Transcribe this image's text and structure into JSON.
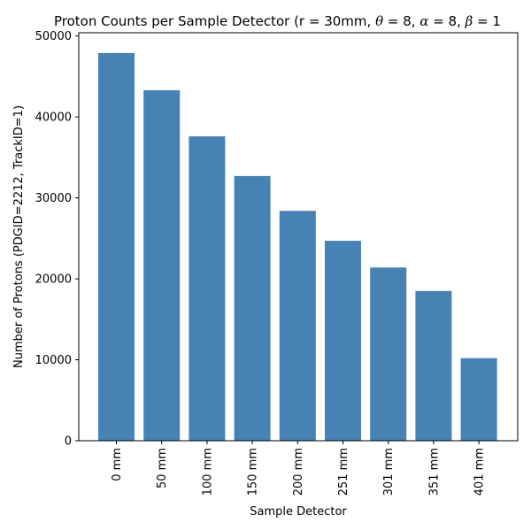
{
  "chart_data": {
    "type": "bar",
    "title_prefix": "Proton Counts per Sample Detector (r = 30mm, ",
    "title_math": [
      {
        "symbol": "θ",
        "value": " = 8, "
      },
      {
        "symbol": "α",
        "value": " = 8, "
      },
      {
        "symbol": "β",
        "value": " = 1"
      }
    ],
    "xlabel": "Sample Detector",
    "ylabel": "Number of Protons (PDGID=2212, TrackID=1)",
    "categories": [
      "0 mm",
      "50 mm",
      "100 mm",
      "150 mm",
      "200 mm",
      "251 mm",
      "301 mm",
      "351 mm",
      "401 mm"
    ],
    "values": [
      47900,
      43300,
      37600,
      32700,
      28400,
      24700,
      21400,
      18500,
      10200
    ],
    "yticks": [
      0,
      10000,
      20000,
      30000,
      40000,
      50000
    ],
    "ylim": [
      0,
      50400
    ],
    "bar_color": "#4682b4",
    "grid": false
  }
}
